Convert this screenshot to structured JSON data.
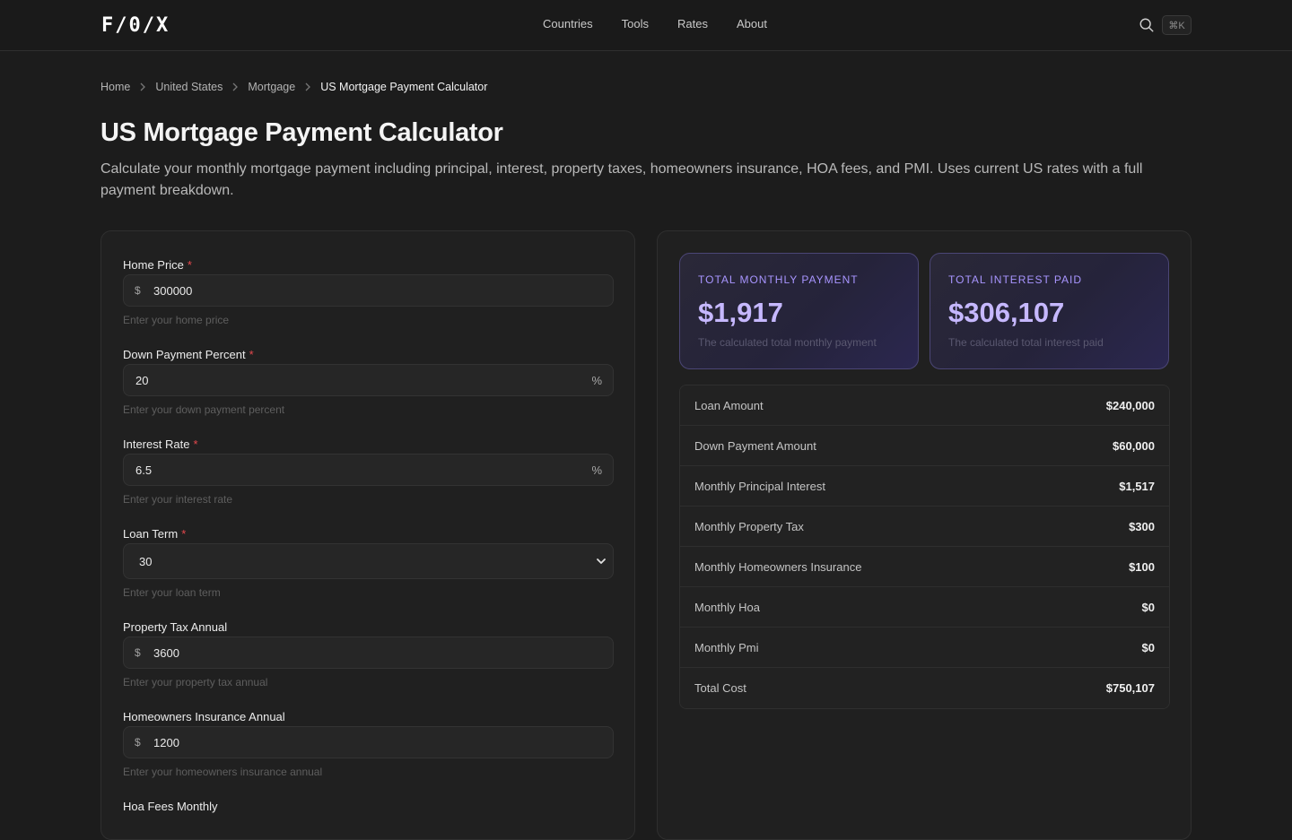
{
  "header": {
    "logo": "F/0/X",
    "nav": [
      "Countries",
      "Tools",
      "Rates",
      "About"
    ],
    "search_icon": "search-icon",
    "shortcut": "⌘K"
  },
  "breadcrumb": [
    "Home",
    "United States",
    "Mortgage",
    "US Mortgage Payment Calculator"
  ],
  "page": {
    "title": "US Mortgage Payment Calculator",
    "description": "Calculate your monthly mortgage payment including principal, interest, property taxes, homeowners insurance, HOA fees, and PMI. Uses current US rates with a full payment breakdown."
  },
  "form": {
    "fields": [
      {
        "label": "Home Price",
        "required": "*",
        "prefix": "$",
        "value": "300000",
        "hint": "Enter your home price"
      },
      {
        "label": "Down Payment Percent",
        "required": "*",
        "suffix": "%",
        "value": "20",
        "hint": "Enter your down payment percent"
      },
      {
        "label": "Interest Rate",
        "required": "*",
        "suffix": "%",
        "value": "6.5",
        "hint": "Enter your interest rate"
      },
      {
        "label": "Loan Term",
        "required": "*",
        "value": "30",
        "hint": "Enter your loan term"
      },
      {
        "label": "Property Tax Annual",
        "prefix": "$",
        "value": "3600",
        "hint": "Enter your property tax annual"
      },
      {
        "label": "Homeowners Insurance Annual",
        "prefix": "$",
        "value": "1200",
        "hint": "Enter your homeowners insurance annual"
      },
      {
        "label": "Hoa Fees Monthly"
      }
    ]
  },
  "results": {
    "stats": [
      {
        "label": "Total Monthly Payment",
        "value": "$1,917",
        "desc": "The calculated total monthly payment"
      },
      {
        "label": "Total Interest Paid",
        "value": "$306,107",
        "desc": "The calculated total interest paid"
      }
    ],
    "rows": [
      {
        "label": "Loan Amount",
        "value": "$240,000"
      },
      {
        "label": "Down Payment Amount",
        "value": "$60,000"
      },
      {
        "label": "Monthly Principal Interest",
        "value": "$1,517"
      },
      {
        "label": "Monthly Property Tax",
        "value": "$300"
      },
      {
        "label": "Monthly Homeowners Insurance",
        "value": "$100"
      },
      {
        "label": "Monthly Hoa",
        "value": "$0"
      },
      {
        "label": "Monthly Pmi",
        "value": "$0"
      },
      {
        "label": "Total Cost",
        "value": "$750,107"
      }
    ]
  },
  "colors": {
    "accent": "#a895ff",
    "required": "#e5484d",
    "background": "#1c1c1c"
  }
}
